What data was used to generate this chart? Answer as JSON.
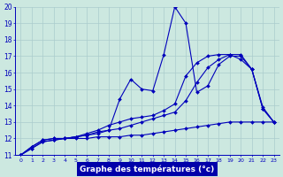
{
  "xlabel": "Graphe des températures (°c)",
  "bg_color": "#cce8e0",
  "grid_color": "#aacccc",
  "line_color": "#0000bb",
  "x": [
    0,
    1,
    2,
    3,
    4,
    5,
    6,
    7,
    8,
    9,
    10,
    11,
    12,
    13,
    14,
    15,
    16,
    17,
    18,
    19,
    20,
    21,
    22,
    23
  ],
  "line1": [
    11.0,
    11.4,
    11.8,
    11.9,
    12.0,
    12.1,
    12.2,
    12.4,
    12.5,
    14.4,
    15.6,
    15.0,
    14.9,
    17.1,
    20.0,
    19.0,
    14.8,
    15.2,
    16.5,
    17.0,
    17.0,
    16.2,
    13.8,
    13.0
  ],
  "line2": [
    11.0,
    11.5,
    11.9,
    12.0,
    12.0,
    12.1,
    12.3,
    12.5,
    12.8,
    13.0,
    13.2,
    13.3,
    13.4,
    13.7,
    14.1,
    15.8,
    16.6,
    17.0,
    17.1,
    17.1,
    16.8,
    16.2,
    13.9,
    13.0
  ],
  "line3": [
    11.0,
    11.4,
    11.8,
    11.9,
    12.0,
    12.1,
    12.2,
    12.3,
    12.5,
    12.6,
    12.8,
    13.0,
    13.2,
    13.4,
    13.6,
    14.3,
    15.4,
    16.3,
    16.8,
    17.1,
    17.1,
    16.2,
    13.8,
    13.0
  ],
  "line4": [
    11.0,
    11.5,
    11.9,
    12.0,
    12.0,
    12.0,
    12.0,
    12.1,
    12.1,
    12.1,
    12.2,
    12.2,
    12.3,
    12.4,
    12.5,
    12.6,
    12.7,
    12.8,
    12.9,
    13.0,
    13.0,
    13.0,
    13.0,
    13.0
  ],
  "ylim": [
    11,
    20
  ],
  "xlim": [
    -0.5,
    23.5
  ],
  "yticks": [
    11,
    12,
    13,
    14,
    15,
    16,
    17,
    18,
    19,
    20
  ],
  "xticks": [
    0,
    1,
    2,
    3,
    4,
    5,
    6,
    7,
    8,
    9,
    10,
    11,
    12,
    13,
    14,
    15,
    16,
    17,
    18,
    19,
    20,
    21,
    22,
    23
  ]
}
